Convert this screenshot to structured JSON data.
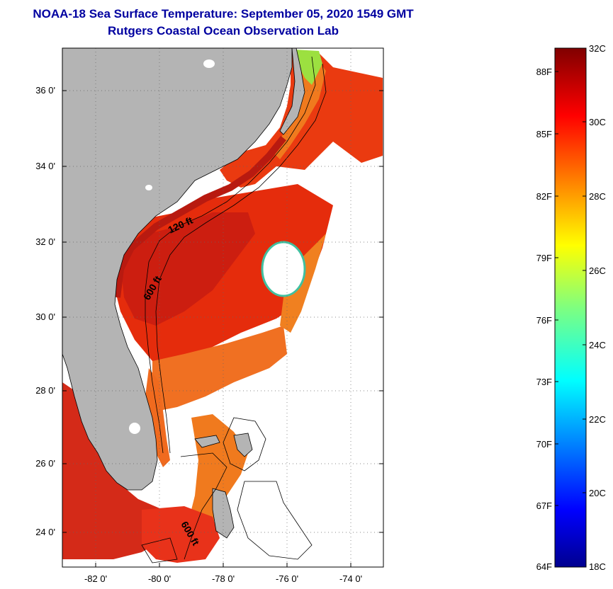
{
  "header": {
    "title": "NOAA-18 Sea Surface Temperature:  September 05, 2020 1549 GMT",
    "subtitle": "Rutgers Coastal Ocean Observation Lab"
  },
  "map": {
    "lat_labels": [
      "36 0'",
      "34 0'",
      "32 0'",
      "30 0'",
      "28 0'",
      "26 0'",
      "24 0'"
    ],
    "lon_labels": [
      "-82 0'",
      "-80 0'",
      "-78 0'",
      "-76 0'",
      "-74 0'"
    ],
    "contour_labels": [
      "120 ft",
      "600 ft",
      "600 ft"
    ],
    "colors": {
      "land": "#b4b4b4",
      "cloud": "#ffffff",
      "warm": "#e8280a",
      "hot": "#c81e10",
      "orange": "#f07a1e"
    }
  },
  "colorbar": {
    "celsius_labels": [
      "32C",
      "30C",
      "28C",
      "26C",
      "24C",
      "22C",
      "20C",
      "18C"
    ],
    "fahrenheit_labels": [
      "88F",
      "85F",
      "82F",
      "79F",
      "76F",
      "73F",
      "70F",
      "67F",
      "64F"
    ],
    "range_c": [
      18,
      32
    ],
    "colormap": "jet"
  }
}
